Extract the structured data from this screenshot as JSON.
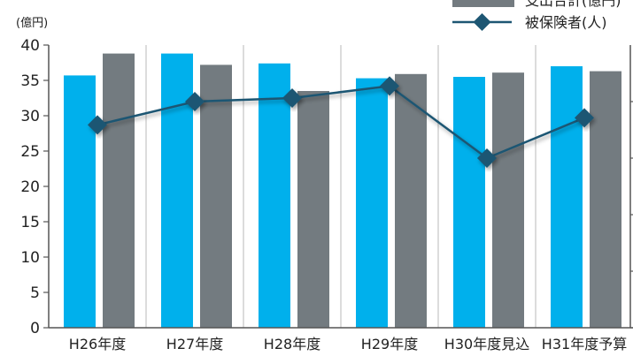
{
  "chart_data": {
    "type": "bar",
    "unit_label": "(億円)",
    "categories": [
      "H26年度",
      "H27年度",
      "H28年度",
      "H29年度",
      "H30年度見込",
      "H31年度予算"
    ],
    "ylim": [
      0,
      40
    ],
    "y_ticks": [
      "0",
      "5",
      "10",
      "15",
      "20",
      "25",
      "30",
      "35",
      "40"
    ],
    "grid": "vertical separators between categories",
    "legend_position": "top-right",
    "colors": {
      "revenue": "#00b0ec",
      "expense": "#737b80",
      "insured_line": "#1d5673"
    },
    "series": [
      {
        "name": "",
        "type": "bar",
        "values": [
          35.7,
          38.8,
          37.4,
          35.3,
          35.5,
          37.0
        ]
      },
      {
        "name": "支出合計(億円)",
        "type": "bar",
        "values": [
          38.8,
          37.2,
          33.5,
          35.9,
          36.1,
          36.3
        ]
      },
      {
        "name": "被保険者(人)",
        "type": "line",
        "values_on_left_scale": [
          28.7,
          32.0,
          32.5,
          34.2,
          24.0,
          29.7
        ]
      }
    ]
  }
}
